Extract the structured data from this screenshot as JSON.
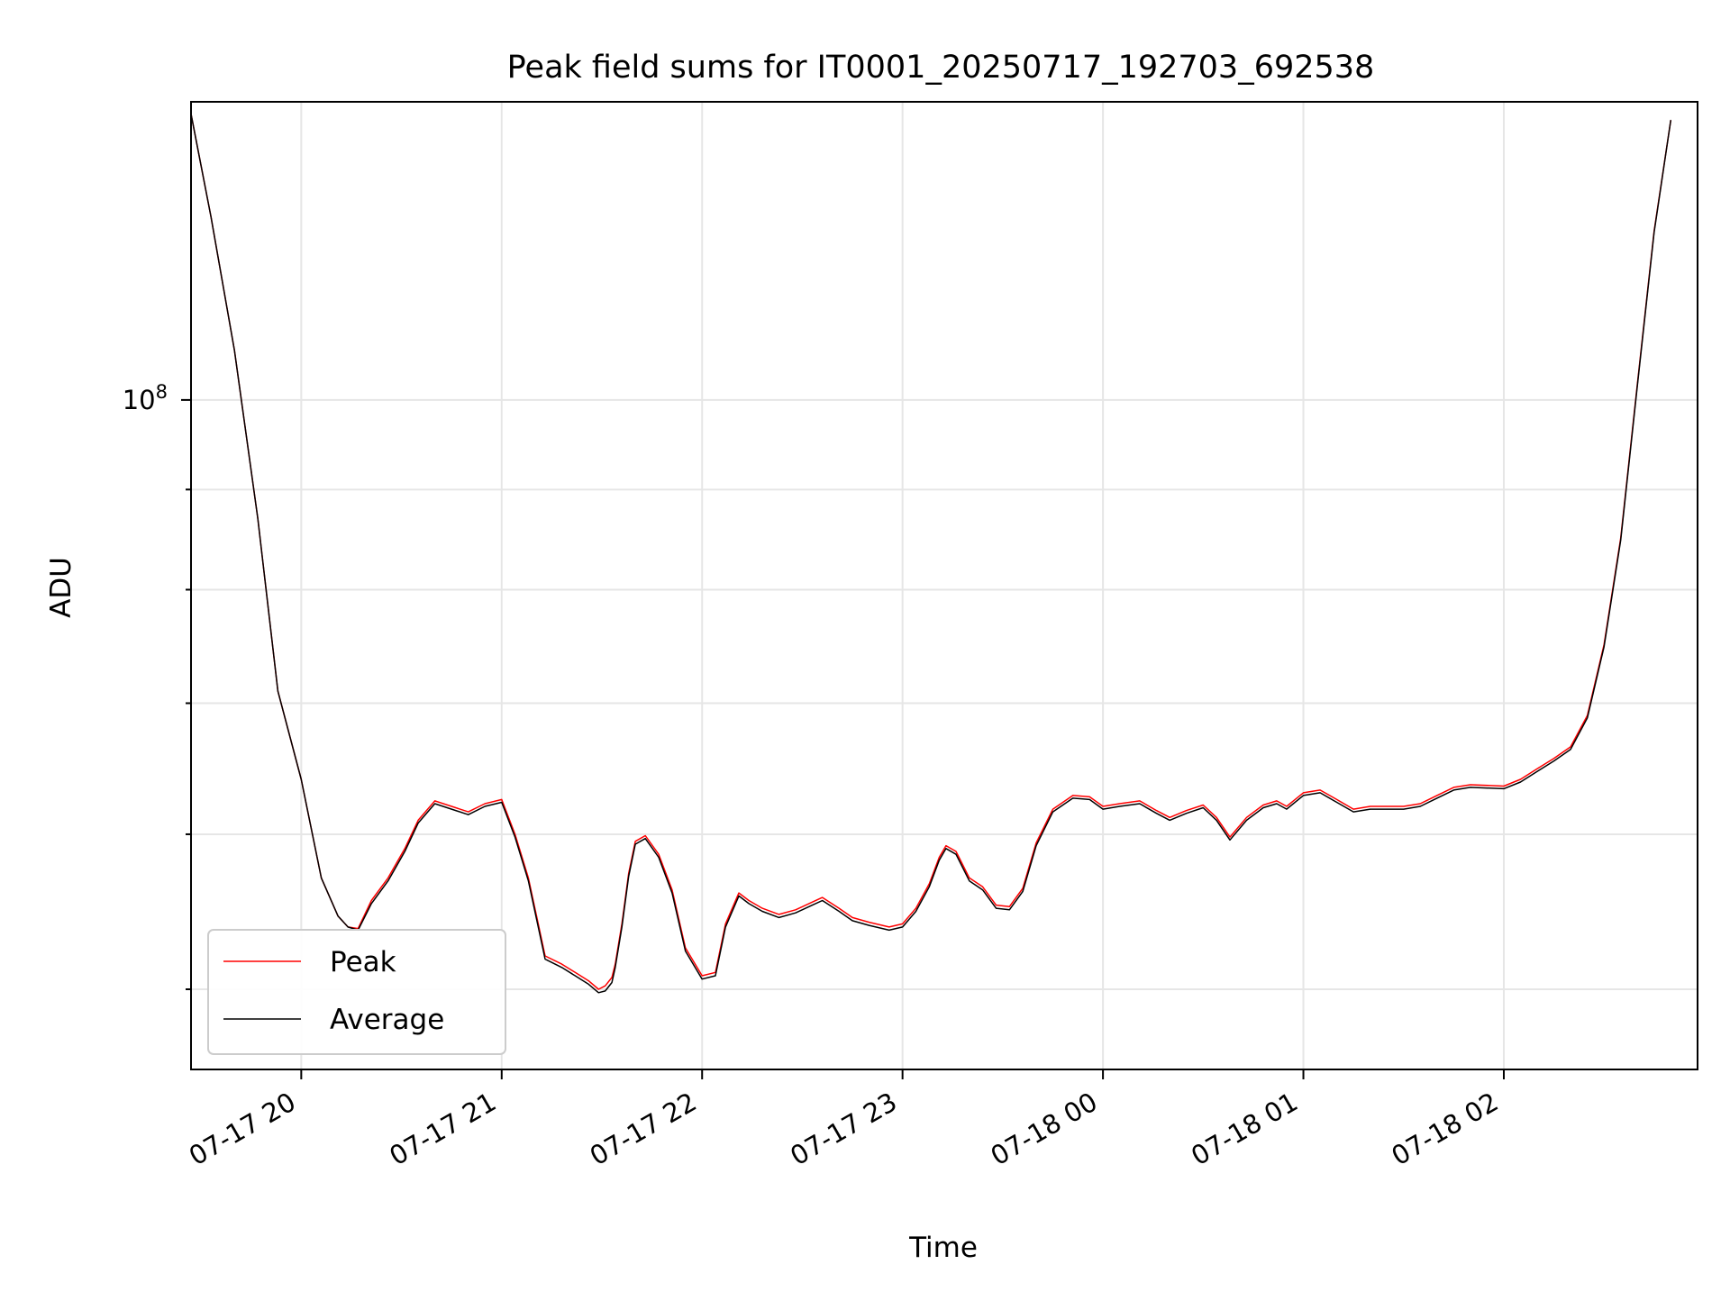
{
  "chart_data": {
    "type": "line",
    "title": "Peak field sums for IT0001_20250717_192703_692538",
    "xlabel": "Time",
    "ylabel": "ADU",
    "y_scale": "log",
    "y_tick_label": {
      "base": "10",
      "exp": "8"
    },
    "grid": true,
    "legend_position": "lower-left",
    "x_tick_labels": [
      "07-17 20",
      "07-17 21",
      "07-17 22",
      "07-17 23",
      "07-18 00",
      "07-18 01",
      "07-18 02"
    ],
    "series": [
      {
        "name": "Peak",
        "color": "#ff0000",
        "points": [
          [
            "2025-07-17 19:27",
            140000000
          ],
          [
            "2025-07-17 19:33",
            124000000
          ],
          [
            "2025-07-17 19:40",
            106000000
          ],
          [
            "2025-07-17 19:47",
            87000000
          ],
          [
            "2025-07-17 19:53",
            71000000
          ],
          [
            "2025-07-17 20:00",
            64000000
          ],
          [
            "2025-07-17 20:06",
            57000000
          ],
          [
            "2025-07-17 20:11",
            54500000
          ],
          [
            "2025-07-17 20:14",
            53800000
          ],
          [
            "2025-07-17 20:17",
            53700000
          ],
          [
            "2025-07-17 20:21",
            55500000
          ],
          [
            "2025-07-17 20:26",
            57000000
          ],
          [
            "2025-07-17 20:31",
            59000000
          ],
          [
            "2025-07-17 20:35",
            61000000
          ],
          [
            "2025-07-17 20:40",
            62400000
          ],
          [
            "2025-07-17 20:45",
            62000000
          ],
          [
            "2025-07-17 20:50",
            61600000
          ],
          [
            "2025-07-17 20:55",
            62200000
          ],
          [
            "2025-07-17 21:00",
            62500000
          ],
          [
            "2025-07-17 21:04",
            60000000
          ],
          [
            "2025-07-17 21:08",
            57000000
          ],
          [
            "2025-07-17 21:13",
            52000000
          ],
          [
            "2025-07-17 21:18",
            51500000
          ],
          [
            "2025-07-17 21:22",
            51000000
          ],
          [
            "2025-07-17 21:26",
            50500000
          ],
          [
            "2025-07-17 21:29",
            50000000
          ],
          [
            "2025-07-17 21:31",
            50200000
          ],
          [
            "2025-07-17 21:33",
            50700000
          ],
          [
            "2025-07-17 21:34",
            51500000
          ],
          [
            "2025-07-17 21:36",
            54000000
          ],
          [
            "2025-07-17 21:38",
            57300000
          ],
          [
            "2025-07-17 21:40",
            59500000
          ],
          [
            "2025-07-17 21:43",
            59900000
          ],
          [
            "2025-07-17 21:47",
            58600000
          ],
          [
            "2025-07-17 21:51",
            56200000
          ],
          [
            "2025-07-17 21:55",
            52500000
          ],
          [
            "2025-07-17 22:00",
            50800000
          ],
          [
            "2025-07-17 22:04",
            51000000
          ],
          [
            "2025-07-17 22:07",
            54000000
          ],
          [
            "2025-07-17 22:11",
            56000000
          ],
          [
            "2025-07-17 22:14",
            55500000
          ],
          [
            "2025-07-17 22:18",
            55000000
          ],
          [
            "2025-07-17 22:23",
            54600000
          ],
          [
            "2025-07-17 22:28",
            54900000
          ],
          [
            "2025-07-17 22:33",
            55400000
          ],
          [
            "2025-07-17 22:36",
            55700000
          ],
          [
            "2025-07-17 22:41",
            55000000
          ],
          [
            "2025-07-17 22:45",
            54400000
          ],
          [
            "2025-07-17 22:50",
            54100000
          ],
          [
            "2025-07-17 22:56",
            53800000
          ],
          [
            "2025-07-17 23:00",
            54000000
          ],
          [
            "2025-07-17 23:04",
            55000000
          ],
          [
            "2025-07-17 23:08",
            56600000
          ],
          [
            "2025-07-17 23:11",
            58400000
          ],
          [
            "2025-07-17 23:13",
            59200000
          ],
          [
            "2025-07-17 23:16",
            58800000
          ],
          [
            "2025-07-17 23:20",
            57000000
          ],
          [
            "2025-07-17 23:24",
            56400000
          ],
          [
            "2025-07-17 23:28",
            55200000
          ],
          [
            "2025-07-17 23:32",
            55100000
          ],
          [
            "2025-07-17 23:36",
            56300000
          ],
          [
            "2025-07-17 23:40",
            59400000
          ],
          [
            "2025-07-17 23:45",
            61800000
          ],
          [
            "2025-07-17 23:51",
            62800000
          ],
          [
            "2025-07-17 23:56",
            62700000
          ],
          [
            "2025-07-18 00:00",
            62000000
          ],
          [
            "2025-07-18 00:05",
            62200000
          ],
          [
            "2025-07-18 00:11",
            62400000
          ],
          [
            "2025-07-18 00:16",
            61700000
          ],
          [
            "2025-07-18 00:20",
            61200000
          ],
          [
            "2025-07-18 00:25",
            61700000
          ],
          [
            "2025-07-18 00:30",
            62100000
          ],
          [
            "2025-07-18 00:34",
            61200000
          ],
          [
            "2025-07-18 00:38",
            59800000
          ],
          [
            "2025-07-18 00:43",
            61200000
          ],
          [
            "2025-07-18 00:48",
            62100000
          ],
          [
            "2025-07-18 00:52",
            62400000
          ],
          [
            "2025-07-18 00:55",
            62000000
          ],
          [
            "2025-07-18 01:00",
            63000000
          ],
          [
            "2025-07-18 01:05",
            63200000
          ],
          [
            "2025-07-18 01:10",
            62500000
          ],
          [
            "2025-07-18 01:15",
            61800000
          ],
          [
            "2025-07-18 01:20",
            62000000
          ],
          [
            "2025-07-18 01:25",
            62000000
          ],
          [
            "2025-07-18 01:30",
            62000000
          ],
          [
            "2025-07-18 01:35",
            62200000
          ],
          [
            "2025-07-18 01:40",
            62800000
          ],
          [
            "2025-07-18 01:45",
            63400000
          ],
          [
            "2025-07-18 01:50",
            63600000
          ],
          [
            "2025-07-18 02:00",
            63500000
          ],
          [
            "2025-07-18 02:05",
            64000000
          ],
          [
            "2025-07-18 02:10",
            64800000
          ],
          [
            "2025-07-18 02:15",
            65600000
          ],
          [
            "2025-07-18 02:20",
            66500000
          ],
          [
            "2025-07-18 02:25",
            69000000
          ],
          [
            "2025-07-18 02:30",
            75000000
          ],
          [
            "2025-07-18 02:35",
            85000000
          ],
          [
            "2025-07-18 02:40",
            102000000
          ],
          [
            "2025-07-18 02:45",
            122000000
          ],
          [
            "2025-07-18 02:50",
            139000000
          ]
        ]
      },
      {
        "name": "Average",
        "color": "#000000",
        "points": [
          [
            "2025-07-17 19:27",
            140000000
          ],
          [
            "2025-07-17 19:33",
            124000000
          ],
          [
            "2025-07-17 19:40",
            106000000
          ],
          [
            "2025-07-17 19:47",
            87000000
          ],
          [
            "2025-07-17 19:53",
            71000000
          ],
          [
            "2025-07-17 20:00",
            64000000
          ],
          [
            "2025-07-17 20:06",
            57000000
          ],
          [
            "2025-07-17 20:11",
            54500000
          ],
          [
            "2025-07-17 20:14",
            53800000
          ],
          [
            "2025-07-17 20:17",
            53600000
          ],
          [
            "2025-07-17 20:21",
            55300000
          ],
          [
            "2025-07-17 20:26",
            56800000
          ],
          [
            "2025-07-17 20:31",
            58800000
          ],
          [
            "2025-07-17 20:35",
            60800000
          ],
          [
            "2025-07-17 20:40",
            62200000
          ],
          [
            "2025-07-17 20:45",
            61800000
          ],
          [
            "2025-07-17 20:50",
            61400000
          ],
          [
            "2025-07-17 20:55",
            62000000
          ],
          [
            "2025-07-17 21:00",
            62300000
          ],
          [
            "2025-07-17 21:04",
            59800000
          ],
          [
            "2025-07-17 21:08",
            56800000
          ],
          [
            "2025-07-17 21:13",
            51800000
          ],
          [
            "2025-07-17 21:18",
            51300000
          ],
          [
            "2025-07-17 21:22",
            50800000
          ],
          [
            "2025-07-17 21:26",
            50300000
          ],
          [
            "2025-07-17 21:29",
            49800000
          ],
          [
            "2025-07-17 21:31",
            49900000
          ],
          [
            "2025-07-17 21:33",
            50400000
          ],
          [
            "2025-07-17 21:34",
            51300000
          ],
          [
            "2025-07-17 21:36",
            53800000
          ],
          [
            "2025-07-17 21:38",
            57100000
          ],
          [
            "2025-07-17 21:40",
            59300000
          ],
          [
            "2025-07-17 21:43",
            59700000
          ],
          [
            "2025-07-17 21:47",
            58400000
          ],
          [
            "2025-07-17 21:51",
            56000000
          ],
          [
            "2025-07-17 21:55",
            52300000
          ],
          [
            "2025-07-17 22:00",
            50600000
          ],
          [
            "2025-07-17 22:04",
            50800000
          ],
          [
            "2025-07-17 22:07",
            53800000
          ],
          [
            "2025-07-17 22:11",
            55800000
          ],
          [
            "2025-07-17 22:14",
            55300000
          ],
          [
            "2025-07-17 22:18",
            54800000
          ],
          [
            "2025-07-17 22:23",
            54400000
          ],
          [
            "2025-07-17 22:28",
            54700000
          ],
          [
            "2025-07-17 22:33",
            55200000
          ],
          [
            "2025-07-17 22:36",
            55500000
          ],
          [
            "2025-07-17 22:41",
            54800000
          ],
          [
            "2025-07-17 22:45",
            54200000
          ],
          [
            "2025-07-17 22:50",
            53900000
          ],
          [
            "2025-07-17 22:56",
            53600000
          ],
          [
            "2025-07-17 23:00",
            53800000
          ],
          [
            "2025-07-17 23:04",
            54800000
          ],
          [
            "2025-07-17 23:08",
            56400000
          ],
          [
            "2025-07-17 23:11",
            58200000
          ],
          [
            "2025-07-17 23:13",
            59000000
          ],
          [
            "2025-07-17 23:16",
            58600000
          ],
          [
            "2025-07-17 23:20",
            56800000
          ],
          [
            "2025-07-17 23:24",
            56200000
          ],
          [
            "2025-07-17 23:28",
            55000000
          ],
          [
            "2025-07-17 23:32",
            54900000
          ],
          [
            "2025-07-17 23:36",
            56100000
          ],
          [
            "2025-07-17 23:40",
            59200000
          ],
          [
            "2025-07-17 23:45",
            61600000
          ],
          [
            "2025-07-17 23:51",
            62600000
          ],
          [
            "2025-07-17 23:56",
            62500000
          ],
          [
            "2025-07-18 00:00",
            61800000
          ],
          [
            "2025-07-18 00:05",
            62000000
          ],
          [
            "2025-07-18 00:11",
            62200000
          ],
          [
            "2025-07-18 00:16",
            61500000
          ],
          [
            "2025-07-18 00:20",
            61000000
          ],
          [
            "2025-07-18 00:25",
            61500000
          ],
          [
            "2025-07-18 00:30",
            61900000
          ],
          [
            "2025-07-18 00:34",
            61000000
          ],
          [
            "2025-07-18 00:38",
            59600000
          ],
          [
            "2025-07-18 00:43",
            61000000
          ],
          [
            "2025-07-18 00:48",
            61900000
          ],
          [
            "2025-07-18 00:52",
            62200000
          ],
          [
            "2025-07-18 00:55",
            61800000
          ],
          [
            "2025-07-18 01:00",
            62800000
          ],
          [
            "2025-07-18 01:05",
            63000000
          ],
          [
            "2025-07-18 01:10",
            62300000
          ],
          [
            "2025-07-18 01:15",
            61600000
          ],
          [
            "2025-07-18 01:20",
            61800000
          ],
          [
            "2025-07-18 01:25",
            61800000
          ],
          [
            "2025-07-18 01:30",
            61800000
          ],
          [
            "2025-07-18 01:35",
            62000000
          ],
          [
            "2025-07-18 01:40",
            62600000
          ],
          [
            "2025-07-18 01:45",
            63200000
          ],
          [
            "2025-07-18 01:50",
            63400000
          ],
          [
            "2025-07-18 02:00",
            63300000
          ],
          [
            "2025-07-18 02:05",
            63800000
          ],
          [
            "2025-07-18 02:10",
            64600000
          ],
          [
            "2025-07-18 02:15",
            65400000
          ],
          [
            "2025-07-18 02:20",
            66300000
          ],
          [
            "2025-07-18 02:25",
            68800000
          ],
          [
            "2025-07-18 02:30",
            74800000
          ],
          [
            "2025-07-18 02:35",
            84800000
          ],
          [
            "2025-07-18 02:40",
            101800000
          ],
          [
            "2025-07-18 02:45",
            121800000
          ],
          [
            "2025-07-18 02:50",
            139000000
          ]
        ]
      }
    ]
  }
}
